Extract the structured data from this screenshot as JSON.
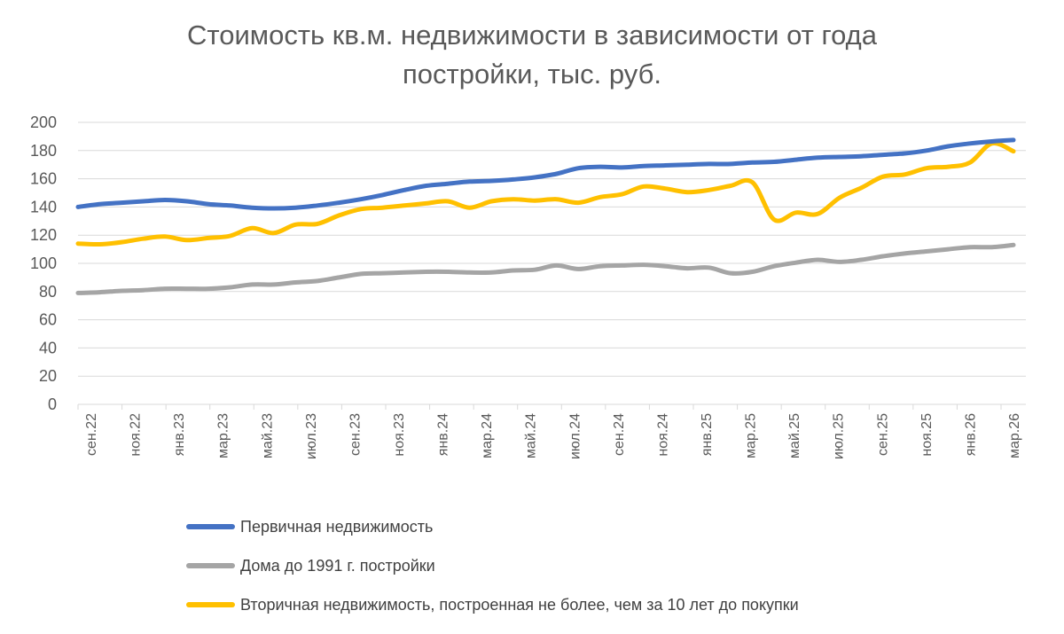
{
  "chart_data": {
    "type": "line",
    "title": [
      "Стоимость кв.м. недвижимости в зависимости от года",
      "постройки, тыс. руб."
    ],
    "ylim": [
      0,
      200
    ],
    "y_ticks": [
      0,
      20,
      40,
      60,
      80,
      100,
      120,
      140,
      160,
      180,
      200
    ],
    "grid": "horizontal",
    "legend_position": "bottom",
    "x_tick_labels": [
      "сен.22",
      "ноя.22",
      "янв.23",
      "мар.23",
      "май.23",
      "июл.23",
      "сен.23",
      "ноя.23",
      "янв.24",
      "мар.24",
      "май.24",
      "июл.24",
      "сен.24",
      "ноя.24",
      "янв.25",
      "мар.25",
      "май.25",
      "июл.25",
      "сен.25",
      "ноя.25",
      "янв.26",
      "мар.26"
    ],
    "series": [
      {
        "name": "Первичная недвижимость",
        "color": "#4472C4",
        "values": [
          140,
          142,
          143,
          144,
          145,
          144,
          142,
          141,
          139.5,
          139,
          139.5,
          141,
          143,
          145.5,
          148.5,
          152,
          155,
          156.5,
          158,
          158.5,
          159.5,
          161,
          163.5,
          167.5,
          168.5,
          168,
          169,
          169.5,
          170,
          170.5,
          170.5,
          171.5,
          172,
          173.5,
          175,
          175.5,
          176,
          177,
          178,
          180,
          183,
          185,
          186.5,
          187.5
        ]
      },
      {
        "name": "Дома до 1991 г. постройки",
        "color": "#A5A5A5",
        "values": [
          79,
          79.5,
          80.5,
          81,
          82,
          82,
          82,
          83,
          85,
          85,
          86.5,
          87.5,
          90,
          92.5,
          93,
          93.5,
          94,
          94,
          93.5,
          93.5,
          95,
          95.5,
          98.5,
          96,
          98,
          98.5,
          99,
          98,
          96.5,
          97,
          93,
          94,
          98,
          100.5,
          102.5,
          101,
          102.5,
          105,
          107,
          108.5,
          110,
          111.5,
          111.5,
          113
        ]
      },
      {
        "name": "Вторичная недвижимость, построенная не более, чем за 10 лет до покупки",
        "color": "#FFC000",
        "values": [
          114,
          113.5,
          115,
          117.5,
          119,
          116.5,
          118,
          119.5,
          125,
          121.5,
          127.5,
          128,
          134,
          138.5,
          139.5,
          141,
          142.5,
          144,
          139.5,
          144,
          145.5,
          144.5,
          145.5,
          143,
          147,
          149,
          154.5,
          153,
          150.5,
          152,
          155,
          157.5,
          131,
          136,
          135,
          146.5,
          153.5,
          161.5,
          163,
          167.5,
          168.5,
          171.5,
          185,
          179.5
        ]
      }
    ]
  }
}
